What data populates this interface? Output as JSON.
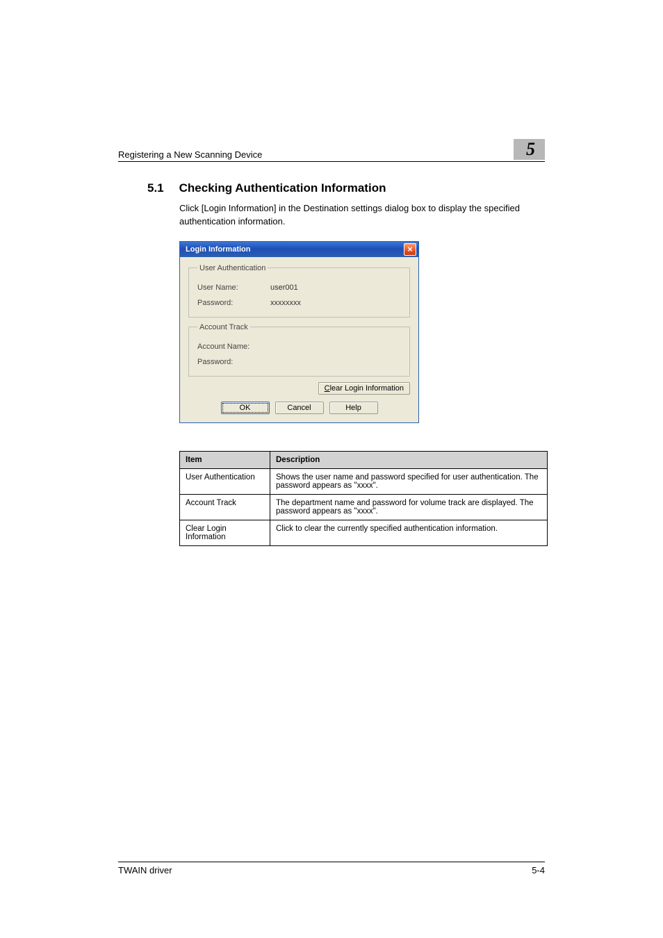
{
  "header": {
    "title": "Registering a New Scanning Device",
    "chapter_number": "5"
  },
  "section": {
    "number": "5.1",
    "title": "Checking Authentication Information",
    "body": "Click [Login Information] in the Destination settings dialog box to display the specified authentication information."
  },
  "dialog": {
    "title": "Login Information",
    "groups": {
      "user_auth": {
        "legend": "User Authentication",
        "user_name_label": "User Name:",
        "user_name_value": "user001",
        "password_label": "Password:",
        "password_value": "xxxxxxxx"
      },
      "account_track": {
        "legend": "Account Track",
        "account_name_label": "Account Name:",
        "account_name_value": "",
        "password_label": "Password:",
        "password_value": ""
      }
    },
    "buttons": {
      "clear_prefix": "C",
      "clear_rest": "lear Login Information",
      "ok": "OK",
      "cancel": "Cancel",
      "help": "Help"
    }
  },
  "table": {
    "headers": {
      "item": "Item",
      "description": "Description"
    },
    "rows": [
      {
        "item": "User Authentication",
        "desc": "Shows the user name and password specified for user authentication. The password appears as \"xxxx\"."
      },
      {
        "item": "Account Track",
        "desc": "The department name and password for volume track are displayed. The password appears as \"xxxx\"."
      },
      {
        "item": "Clear Login Information",
        "desc": "Click to clear the currently specified authentication information."
      }
    ]
  },
  "footer": {
    "left": "TWAIN driver",
    "right": "5-4"
  }
}
